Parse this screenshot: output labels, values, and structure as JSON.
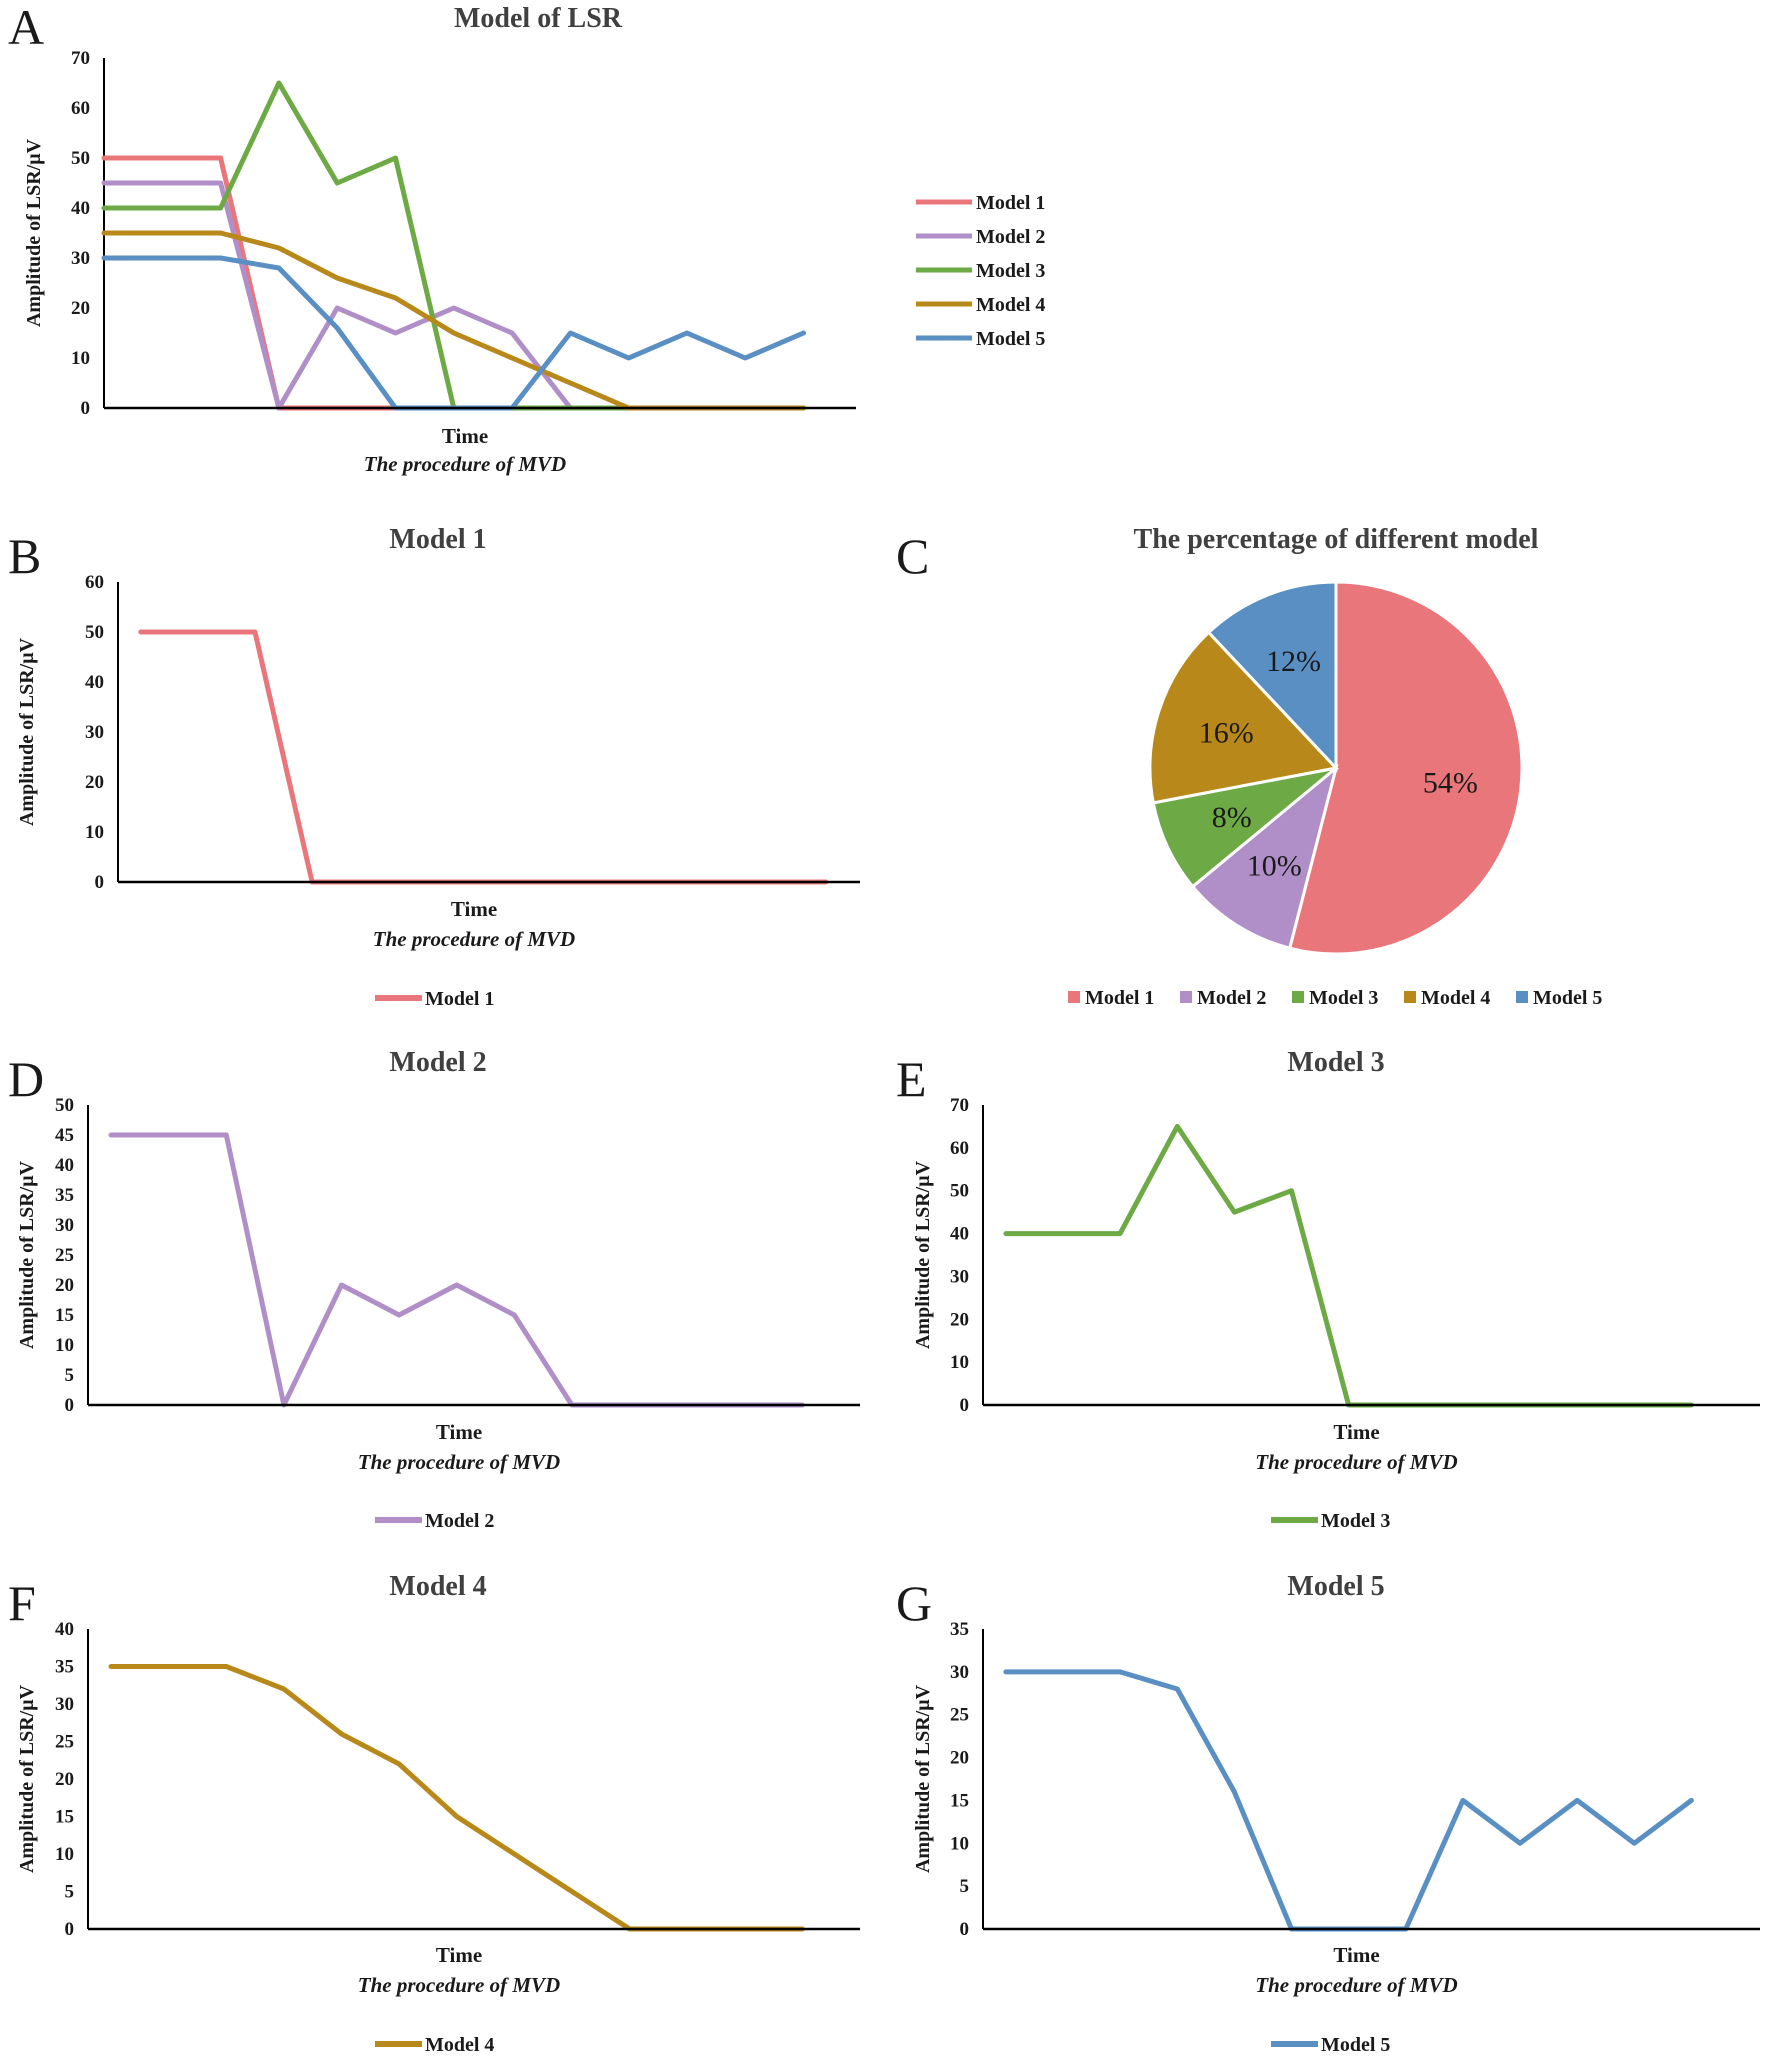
{
  "colors": {
    "Model 1": "#E8767A",
    "Model 2": "#B08FC8",
    "Model 3": "#6DAA45",
    "Model 4": "#B8891A",
    "Model 5": "#5A8FC4"
  },
  "chart_data": [
    {
      "id": "A",
      "panel": "A",
      "type": "line",
      "title": "Model of LSR",
      "xlabel": "Time",
      "xsublabel": "The procedure of MVD",
      "ylabel": "Amplitude of LSR/μV",
      "ylim": [
        0,
        70
      ],
      "yticks": [
        0,
        10,
        20,
        30,
        40,
        50,
        60,
        70
      ],
      "legend_position": "right",
      "series": [
        {
          "name": "Model 1",
          "x": [
            0,
            2,
            3,
            4,
            5,
            6,
            7,
            8,
            9,
            10,
            11,
            12
          ],
          "values": [
            50,
            50,
            0,
            0,
            0,
            0,
            0,
            0,
            0,
            0,
            0,
            0
          ]
        },
        {
          "name": "Model 2",
          "x": [
            0,
            2,
            3,
            4,
            5,
            6,
            7,
            8,
            9,
            10,
            11,
            12
          ],
          "values": [
            45,
            45,
            0,
            20,
            15,
            20,
            15,
            0,
            0,
            0,
            0,
            0
          ]
        },
        {
          "name": "Model 3",
          "x": [
            0,
            2,
            3,
            4,
            5,
            6,
            7,
            8,
            9,
            10,
            11,
            12
          ],
          "values": [
            40,
            40,
            65,
            45,
            50,
            0,
            0,
            0,
            0,
            0,
            0,
            0
          ]
        },
        {
          "name": "Model 4",
          "x": [
            0,
            2,
            3,
            4,
            5,
            6,
            7,
            8,
            9,
            10,
            11,
            12
          ],
          "values": [
            35,
            35,
            32,
            26,
            22,
            15,
            10,
            5,
            0,
            0,
            0,
            0
          ]
        },
        {
          "name": "Model 5",
          "x": [
            0,
            2,
            3,
            4,
            5,
            6,
            7,
            8,
            9,
            10,
            11,
            12
          ],
          "values": [
            30,
            30,
            28,
            16,
            0,
            0,
            0,
            15,
            10,
            15,
            10,
            15
          ]
        }
      ]
    },
    {
      "id": "B",
      "panel": "B",
      "type": "line",
      "title": "Model 1",
      "xlabel": "Time",
      "xsublabel": "The procedure of MVD",
      "ylabel": "Amplitude of LSR/μV",
      "ylim": [
        0,
        60
      ],
      "yticks": [
        0,
        10,
        20,
        30,
        40,
        50,
        60
      ],
      "legend_position": "bottom",
      "series": [
        {
          "name": "Model 1",
          "x": [
            0,
            2,
            3,
            4,
            5,
            6,
            7,
            8,
            9,
            10,
            11,
            12
          ],
          "values": [
            50,
            50,
            0,
            0,
            0,
            0,
            0,
            0,
            0,
            0,
            0,
            0
          ]
        }
      ]
    },
    {
      "id": "C",
      "panel": "C",
      "type": "pie",
      "title": "The percentage of different model",
      "legend_position": "bottom",
      "categories": [
        "Model 1",
        "Model 2",
        "Model 3",
        "Model 4",
        "Model 5"
      ],
      "values": [
        54,
        10,
        8,
        16,
        12
      ],
      "labels": [
        "54%",
        "10%",
        "8%",
        "16%",
        "12%"
      ]
    },
    {
      "id": "D",
      "panel": "D",
      "type": "line",
      "title": "Model 2",
      "xlabel": "Time",
      "xsublabel": "The procedure of MVD",
      "ylabel": "Amplitude of LSR/μV",
      "ylim": [
        0,
        50
      ],
      "yticks": [
        0,
        5,
        10,
        15,
        20,
        25,
        30,
        35,
        40,
        45,
        50
      ],
      "legend_position": "bottom",
      "series": [
        {
          "name": "Model 2",
          "x": [
            0,
            2,
            3,
            4,
            5,
            6,
            7,
            8,
            9,
            10,
            11,
            12
          ],
          "values": [
            45,
            45,
            0,
            20,
            15,
            20,
            15,
            0,
            0,
            0,
            0,
            0
          ]
        }
      ]
    },
    {
      "id": "E",
      "panel": "E",
      "type": "line",
      "title": "Model 3",
      "xlabel": "Time",
      "xsublabel": "The procedure of MVD",
      "ylabel": "Amplitude of LSR/μV",
      "ylim": [
        0,
        70
      ],
      "yticks": [
        0,
        10,
        20,
        30,
        40,
        50,
        60,
        70
      ],
      "legend_position": "bottom",
      "series": [
        {
          "name": "Model 3",
          "x": [
            0,
            2,
            3,
            4,
            5,
            6,
            7,
            8,
            9,
            10,
            11,
            12
          ],
          "values": [
            40,
            40,
            65,
            45,
            50,
            0,
            0,
            0,
            0,
            0,
            0,
            0
          ]
        }
      ]
    },
    {
      "id": "F",
      "panel": "F",
      "type": "line",
      "title": "Model 4",
      "xlabel": "Time",
      "xsublabel": "The procedure of MVD",
      "ylabel": "Amplitude of LSR/μV",
      "ylim": [
        0,
        40
      ],
      "yticks": [
        0,
        5,
        10,
        15,
        20,
        25,
        30,
        35,
        40
      ],
      "legend_position": "bottom",
      "series": [
        {
          "name": "Model 4",
          "x": [
            0,
            2,
            3,
            4,
            5,
            6,
            7,
            8,
            9,
            10,
            11,
            12
          ],
          "values": [
            35,
            35,
            32,
            26,
            22,
            15,
            10,
            5,
            0,
            0,
            0,
            0
          ]
        }
      ]
    },
    {
      "id": "G",
      "panel": "G",
      "type": "line",
      "title": "Model 5",
      "xlabel": "Time",
      "xsublabel": "The procedure of MVD",
      "ylabel": "Amplitude of LSR/μV",
      "ylim": [
        0,
        35
      ],
      "yticks": [
        0,
        5,
        10,
        15,
        20,
        25,
        30,
        35
      ],
      "legend_position": "bottom",
      "series": [
        {
          "name": "Model 5",
          "x": [
            0,
            2,
            3,
            4,
            5,
            6,
            7,
            8,
            9,
            10,
            11,
            12
          ],
          "values": [
            30,
            30,
            28,
            16,
            0,
            0,
            0,
            15,
            10,
            15,
            10,
            15
          ]
        }
      ]
    }
  ]
}
